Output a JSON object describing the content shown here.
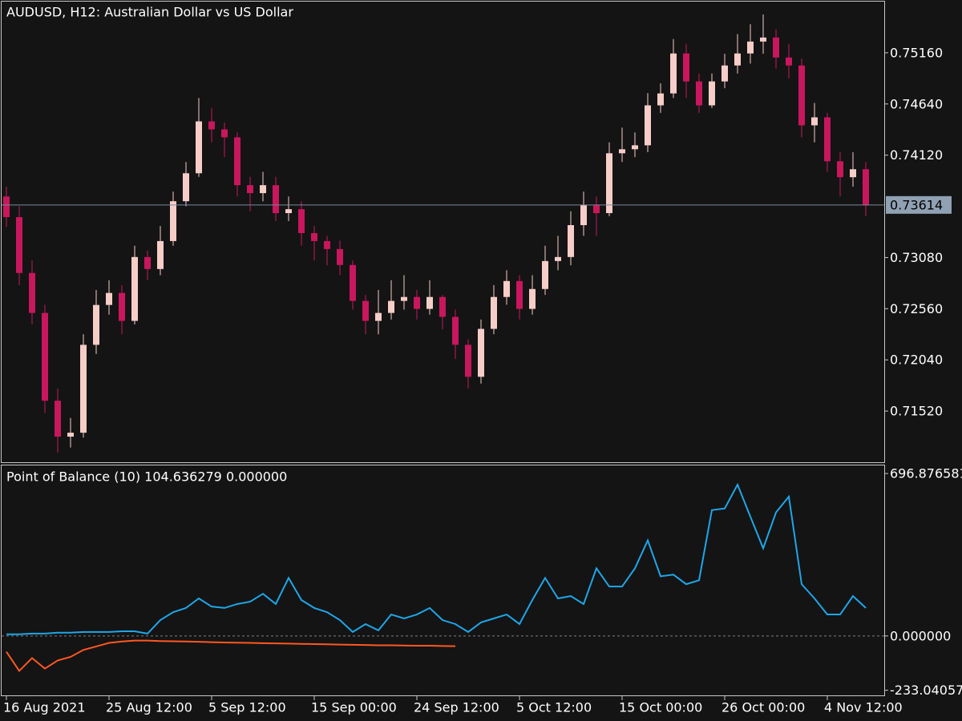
{
  "chart_data": [
    {
      "type": "candlestick",
      "title": "AUDUSD, H12:  Australian Dollar vs US Dollar",
      "categories": [
        "16 Aug 2021",
        null,
        null,
        null,
        null,
        null,
        null,
        null,
        "25 Aug 12:00",
        null,
        null,
        null,
        null,
        null,
        null,
        null,
        "5 Sep 12:00",
        null,
        null,
        null,
        null,
        null,
        null,
        null,
        "15 Sep 00:00",
        null,
        null,
        null,
        null,
        null,
        null,
        null,
        "24 Sep 12:00",
        null,
        null,
        null,
        null,
        null,
        null,
        null,
        "5 Oct 12:00",
        null,
        null,
        null,
        null,
        null,
        null,
        null,
        "15 Oct 00:00",
        null,
        null,
        null,
        null,
        null,
        null,
        null,
        "26 Oct 00:00",
        null,
        null,
        null,
        null,
        null,
        null,
        null,
        "4 Nov 12:00",
        null,
        null,
        null
      ],
      "open": [
        0.737,
        0.7349,
        0.72923,
        0.72517,
        0.71625,
        0.7126,
        0.713,
        0.72193,
        0.72598,
        0.7272,
        0.72436,
        0.73085,
        0.72963,
        0.73247,
        0.73652,
        0.73936,
        0.74463,
        0.74382,
        0.74301,
        0.73815,
        0.73734,
        0.73815,
        0.73531,
        0.73571,
        0.73328,
        0.73247,
        0.73166,
        0.73004,
        0.72639,
        0.72436,
        0.72517,
        0.72639,
        0.72679,
        0.72558,
        0.72679,
        0.72477,
        0.72193,
        0.71868,
        0.72355,
        0.72679,
        0.72841,
        0.72558,
        0.7276,
        0.73044,
        0.73085,
        0.73409,
        0.73612,
        0.73531,
        0.74139,
        0.7418,
        0.7422,
        0.74626,
        0.74747,
        0.75153,
        0.74869,
        0.74626,
        0.74869,
        0.75031,
        0.75153,
        0.75274,
        0.75315,
        0.75112,
        0.75031,
        0.74423,
        0.74504,
        0.74058,
        0.73896,
        0.73977
      ],
      "high": [
        0.738,
        0.736,
        0.7305,
        0.726,
        0.7175,
        0.7145,
        0.723,
        0.7275,
        0.7285,
        0.728,
        0.732,
        0.7315,
        0.734,
        0.7375,
        0.7405,
        0.747,
        0.746,
        0.7445,
        0.7435,
        0.739,
        0.7395,
        0.739,
        0.737,
        0.7365,
        0.734,
        0.733,
        0.7325,
        0.7305,
        0.727,
        0.7275,
        0.7285,
        0.729,
        0.7275,
        0.7285,
        0.727,
        0.7255,
        0.7225,
        0.7245,
        0.728,
        0.7295,
        0.729,
        0.729,
        0.732,
        0.733,
        0.7355,
        0.7375,
        0.737,
        0.7425,
        0.744,
        0.7435,
        0.7475,
        0.7485,
        0.753,
        0.7525,
        0.7495,
        0.7495,
        0.7515,
        0.7535,
        0.7545,
        0.7555,
        0.754,
        0.7525,
        0.751,
        0.7465,
        0.7455,
        0.7415,
        0.7415,
        0.7405
      ],
      "low": [
        0.7339,
        0.728,
        0.724,
        0.715,
        0.711,
        0.7115,
        0.7125,
        0.721,
        0.725,
        0.723,
        0.724,
        0.7285,
        0.729,
        0.732,
        0.736,
        0.739,
        0.7425,
        0.741,
        0.737,
        0.7355,
        0.7365,
        0.7345,
        0.7345,
        0.732,
        0.7305,
        0.73,
        0.729,
        0.7255,
        0.723,
        0.723,
        0.7245,
        0.7255,
        0.7245,
        0.725,
        0.7235,
        0.7205,
        0.7175,
        0.718,
        0.723,
        0.726,
        0.7245,
        0.725,
        0.727,
        0.7295,
        0.73,
        0.733,
        0.733,
        0.735,
        0.7405,
        0.741,
        0.7415,
        0.7455,
        0.747,
        0.747,
        0.7455,
        0.746,
        0.748,
        0.7495,
        0.7505,
        0.7515,
        0.75,
        0.749,
        0.743,
        0.7425,
        0.7395,
        0.737,
        0.738,
        0.735
      ],
      "close": [
        0.7349,
        0.72923,
        0.72517,
        0.71625,
        0.7126,
        0.713,
        0.72193,
        0.72598,
        0.7272,
        0.72436,
        0.73085,
        0.72963,
        0.73247,
        0.73652,
        0.73936,
        0.74463,
        0.74382,
        0.74301,
        0.73815,
        0.73734,
        0.73815,
        0.73531,
        0.73571,
        0.73328,
        0.73247,
        0.73166,
        0.73004,
        0.72639,
        0.72436,
        0.72517,
        0.72639,
        0.72679,
        0.72558,
        0.72679,
        0.72477,
        0.72193,
        0.71868,
        0.72355,
        0.72679,
        0.72841,
        0.72558,
        0.7276,
        0.73044,
        0.73085,
        0.73409,
        0.73612,
        0.73531,
        0.74139,
        0.7418,
        0.7422,
        0.74626,
        0.74747,
        0.75153,
        0.74869,
        0.74626,
        0.74869,
        0.75031,
        0.75153,
        0.75274,
        0.75315,
        0.75112,
        0.75031,
        0.74423,
        0.74504,
        0.74058,
        0.73896,
        0.73977,
        0.73614
      ],
      "up_color": "#f7cdc8",
      "down_color": "#c8175d",
      "ylim": [
        0.71,
        0.7568
      ],
      "yticks": [
        {
          "value": 0.7516,
          "label": "0.75160"
        },
        {
          "value": 0.7464,
          "label": "0.74640"
        },
        {
          "value": 0.7412,
          "label": "0.74120"
        },
        {
          "value": 0.7308,
          "label": "0.73080"
        },
        {
          "value": 0.7256,
          "label": "0.72560"
        },
        {
          "value": 0.7204,
          "label": "0.72040"
        },
        {
          "value": 0.7152,
          "label": "0.71520"
        }
      ],
      "last_price": 0.73614
    },
    {
      "type": "line",
      "title": "Point of Balance (10) 104.636279 0.000000",
      "series": [
        {
          "color": "#1ea7e8",
          "values": [
            7,
            7,
            10,
            10,
            14,
            14,
            17,
            17,
            17,
            20,
            20,
            10,
            68,
            102,
            120,
            161,
            126,
            120,
            137,
            147,
            181,
            137,
            249,
            154,
            120,
            102,
            68,
            17,
            51,
            24,
            92,
            75,
            92,
            120,
            68,
            51,
            17,
            58,
            75,
            92,
            51,
            154,
            249,
            161,
            171,
            137,
            290,
            212,
            212,
            290,
            410,
            256,
            263,
            222,
            239,
            540,
            547,
            649,
            512,
            376,
            530,
            598,
            222,
            161,
            92,
            92,
            171,
            120
          ]
        },
        {
          "color": "#ff5722",
          "values": [
            -68,
            -150,
            -95,
            -140,
            -105,
            -90,
            -60,
            -45,
            -30,
            -24,
            -20,
            -20,
            -22,
            -23,
            -24,
            -25,
            -27,
            -28,
            -29,
            -30,
            -31,
            -32,
            -33,
            -34,
            -35,
            -36,
            -37,
            -38,
            -39,
            -40,
            -40,
            -41,
            -42,
            -42,
            -43,
            -44,
            null,
            null,
            null,
            null,
            null,
            null,
            null,
            null,
            null,
            null,
            null,
            null,
            null,
            null,
            null,
            null,
            null,
            null,
            null,
            null,
            null,
            null,
            null,
            null,
            null,
            null,
            null,
            null,
            null,
            null,
            null,
            null
          ]
        }
      ],
      "ylim": [
        -255,
        735
      ],
      "yticks": [
        696.876581,
        {
          "value": 0,
          "label": "0.000000"
        },
        -233.04057
      ]
    }
  ]
}
